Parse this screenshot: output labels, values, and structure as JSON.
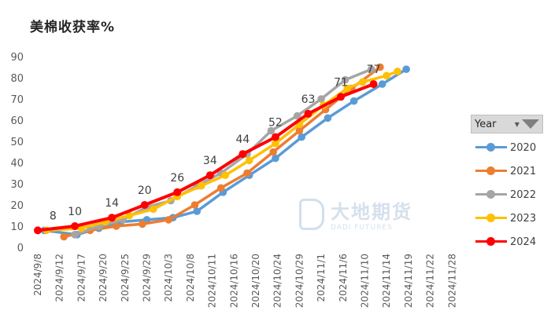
{
  "chart_data": {
    "type": "line",
    "title": "美棉收获率%",
    "xlabel": "",
    "ylabel": "",
    "ylim": [
      0,
      90
    ],
    "yticks": [
      0,
      10,
      20,
      30,
      40,
      50,
      60,
      70,
      80,
      90
    ],
    "categories": [
      "2024/9/8",
      "2024/9/12",
      "2024/9/17",
      "2024/9/20",
      "2024/9/25",
      "2024/9/29",
      "2024/10/3",
      "2024/10/8",
      "2024/10/11",
      "2024/10/16",
      "2024/10/20",
      "2024/10/24",
      "2024/10/29",
      "2024/11/1",
      "2024/11/6",
      "2024/11/10",
      "2024/11/14",
      "2024/11/19",
      "2024/11/22",
      "2024/11/28"
    ],
    "series": [
      {
        "name": "2020",
        "color": "#5b9bd5",
        "values": [
          [
            0.3,
            8
          ],
          [
            1.8,
            6
          ],
          [
            2.8,
            9
          ],
          [
            3.8,
            12
          ],
          [
            5.0,
            13
          ],
          [
            6.2,
            14
          ],
          [
            7.3,
            17
          ],
          [
            8.5,
            26
          ],
          [
            9.7,
            34
          ],
          [
            10.9,
            42
          ],
          [
            12.1,
            52
          ],
          [
            13.3,
            61
          ],
          [
            14.5,
            69
          ],
          [
            15.8,
            77
          ],
          [
            16.9,
            84
          ]
        ]
      },
      {
        "name": "2021",
        "color": "#ed7d31",
        "values": [
          [
            1.2,
            5
          ],
          [
            2.4,
            8
          ],
          [
            3.6,
            10
          ],
          [
            4.8,
            11
          ],
          [
            6.0,
            13
          ],
          [
            7.2,
            20
          ],
          [
            8.4,
            28
          ],
          [
            9.6,
            35
          ],
          [
            10.8,
            45
          ],
          [
            12.0,
            55
          ],
          [
            13.2,
            65
          ],
          [
            14.4,
            75
          ],
          [
            15.7,
            85
          ]
        ]
      },
      {
        "name": "2022",
        "color": "#a5a5a5",
        "values": [
          [
            1.7,
            6
          ],
          [
            2.8,
            10
          ],
          [
            3.9,
            13
          ],
          [
            5.0,
            19
          ],
          [
            6.1,
            22
          ],
          [
            7.3,
            29
          ],
          [
            8.4,
            35
          ],
          [
            9.6,
            44
          ],
          [
            10.7,
            55
          ],
          [
            11.9,
            62
          ],
          [
            13.0,
            70
          ],
          [
            14.1,
            79
          ],
          [
            15.3,
            84
          ]
        ]
      },
      {
        "name": "2023",
        "color": "#ffc000",
        "values": [
          [
            0.4,
            8
          ],
          [
            2.0,
            9
          ],
          [
            3.1,
            12
          ],
          [
            4.2,
            15
          ],
          [
            5.3,
            18
          ],
          [
            6.4,
            24
          ],
          [
            7.5,
            29
          ],
          [
            8.6,
            34
          ],
          [
            9.7,
            41
          ],
          [
            10.9,
            49
          ],
          [
            12.0,
            58
          ],
          [
            13.1,
            67
          ],
          [
            14.2,
            75
          ],
          [
            14.9,
            78
          ],
          [
            16.0,
            81
          ],
          [
            16.5,
            83
          ]
        ]
      },
      {
        "name": "2024",
        "color": "#ff0000",
        "values": [
          [
            0,
            8
          ],
          [
            1.7,
            10
          ],
          [
            3.4,
            14
          ],
          [
            4.9,
            20
          ],
          [
            6.4,
            26
          ],
          [
            7.9,
            34
          ],
          [
            9.4,
            44
          ],
          [
            10.9,
            52
          ],
          [
            12.4,
            63
          ],
          [
            13.9,
            71
          ],
          [
            15.4,
            77
          ]
        ],
        "labels": [
          [
            0.7,
            8
          ],
          [
            1.7,
            10
          ],
          [
            3.4,
            14
          ],
          [
            4.9,
            20
          ],
          [
            6.4,
            26
          ],
          [
            7.9,
            34
          ],
          [
            9.4,
            44
          ],
          [
            10.9,
            52
          ],
          [
            12.4,
            63
          ],
          [
            13.9,
            71
          ],
          [
            15.4,
            77
          ]
        ]
      }
    ]
  },
  "legend": {
    "header": "Year",
    "items": [
      "2020",
      "2021",
      "2022",
      "2023",
      "2024"
    ]
  },
  "watermark": {
    "cn": "大地期货",
    "en": "DADI FUTURES"
  }
}
